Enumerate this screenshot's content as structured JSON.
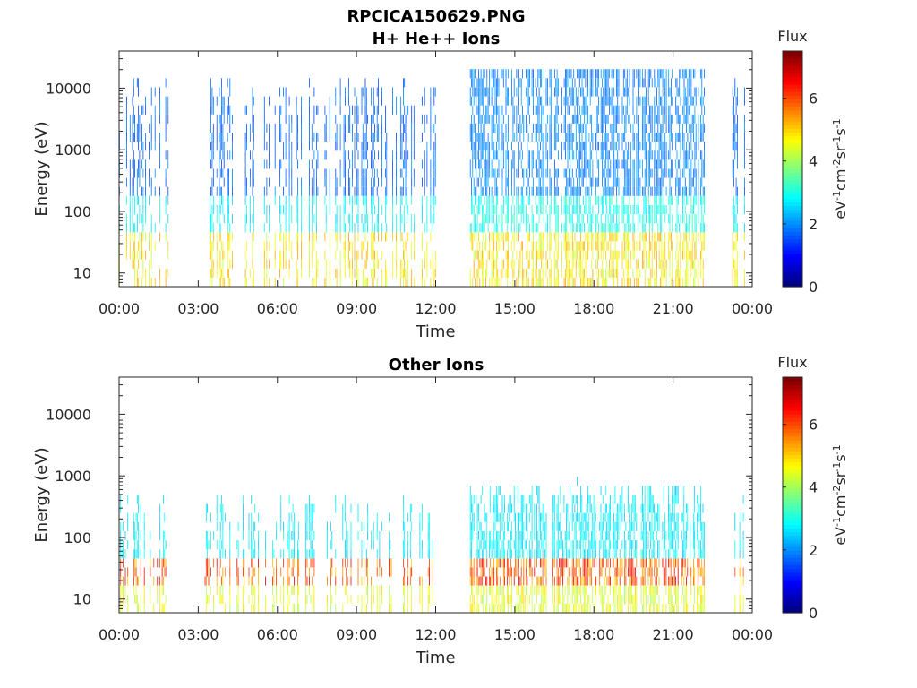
{
  "chart_data": [
    {
      "type": "heatmap",
      "title_line1": "RPCICA150629.PNG",
      "title_line2": "H+ He++ Ions",
      "xlabel": "Time",
      "ylabel": "Energy (eV)",
      "x_ticks": [
        "00:00",
        "03:00",
        "06:00",
        "09:00",
        "12:00",
        "15:00",
        "18:00",
        "21:00",
        "00:00"
      ],
      "x_range_hours": [
        0,
        24
      ],
      "y_scale": "log",
      "y_ticks": [
        "10",
        "100",
        "1000",
        "10000"
      ],
      "y_range": [
        6,
        40000
      ],
      "colorbar": {
        "title": "Flux",
        "unit_base": "eV",
        "ticks": [
          "0",
          "2",
          "4",
          "6"
        ],
        "range": [
          0,
          7.5
        ],
        "colormap": "jet"
      },
      "data_coverage_hours": [
        [
          0.0,
          1.85
        ],
        [
          3.2,
          12.0
        ],
        [
          13.3,
          16.4
        ],
        [
          16.5,
          22.2
        ],
        [
          23.2,
          23.7
        ]
      ]
    },
    {
      "type": "heatmap",
      "title": "Other Ions",
      "xlabel": "Time",
      "ylabel": "Energy (eV)",
      "x_ticks": [
        "00:00",
        "03:00",
        "06:00",
        "09:00",
        "12:00",
        "15:00",
        "18:00",
        "21:00",
        "00:00"
      ],
      "x_range_hours": [
        0,
        24
      ],
      "y_scale": "log",
      "y_ticks": [
        "10",
        "100",
        "1000",
        "10000"
      ],
      "y_range": [
        6,
        40000
      ],
      "colorbar": {
        "title": "Flux",
        "unit_base": "eV",
        "ticks": [
          "0",
          "2",
          "4",
          "6"
        ],
        "range": [
          0,
          7.5
        ],
        "colormap": "jet"
      },
      "data_coverage_hours": [
        [
          0.0,
          1.85
        ],
        [
          3.2,
          12.0
        ],
        [
          13.3,
          22.2
        ],
        [
          23.2,
          23.7
        ]
      ]
    }
  ]
}
